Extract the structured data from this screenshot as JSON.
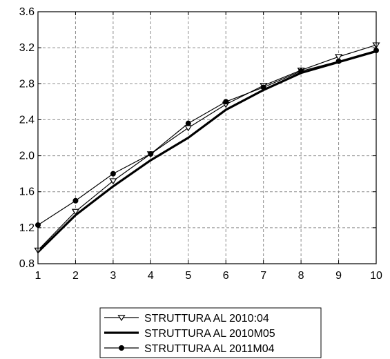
{
  "chart_data": {
    "type": "line",
    "title": "",
    "xlabel": "",
    "ylabel": "",
    "x": [
      1,
      2,
      3,
      4,
      5,
      6,
      7,
      8,
      9,
      10
    ],
    "xlim": [
      1,
      10
    ],
    "ylim": [
      0.8,
      3.6
    ],
    "x_ticks": [
      "1",
      "2",
      "3",
      "4",
      "5",
      "6",
      "7",
      "8",
      "9",
      "10"
    ],
    "y_ticks": [
      "0.8",
      "1.2",
      "1.6",
      "2.0",
      "2.4",
      "2.8",
      "3.2",
      "3.6"
    ],
    "grid": true,
    "legend_position": "bottom",
    "series": [
      {
        "name": "STRUTTURA AL 2010:04",
        "marker": "triangle-down",
        "line": "thin",
        "values": [
          0.95,
          1.38,
          1.72,
          2.02,
          2.31,
          2.57,
          2.78,
          2.95,
          3.1,
          3.23
        ]
      },
      {
        "name": "STRUTTURA AL 2010M05",
        "marker": "none",
        "line": "thick",
        "values": [
          0.93,
          1.34,
          1.66,
          1.95,
          2.2,
          2.51,
          2.73,
          2.92,
          3.04,
          3.16
        ]
      },
      {
        "name": "STRUTTURA AL 2011M04",
        "marker": "circle",
        "line": "thin",
        "values": [
          1.23,
          1.5,
          1.8,
          2.02,
          2.36,
          2.6,
          2.76,
          2.94,
          3.05,
          3.17
        ]
      }
    ],
    "colors": {
      "line": "#000000",
      "grid": "#8c8c8c"
    }
  }
}
